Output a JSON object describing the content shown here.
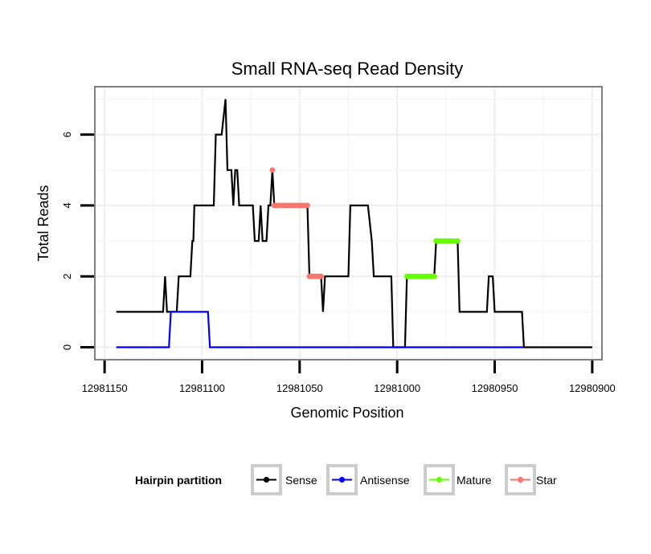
{
  "chart_data": {
    "type": "line",
    "title": "Small RNA-seq Read Density",
    "xlabel": "Genomic Position",
    "ylabel": "Total Reads",
    "xlim": [
      12981155,
      12980895
    ],
    "x_reversed": true,
    "ylim": [
      -0.35,
      7.35
    ],
    "xticks": [
      12981150,
      12981100,
      12981050,
      12981000,
      12980950,
      12980900
    ],
    "xtick_labels": [
      "12981150",
      "12981100",
      "12981050",
      "12981000",
      "12980950",
      "12980900"
    ],
    "yticks": [
      0,
      2,
      4,
      6
    ],
    "ytick_labels": [
      "0",
      "2",
      "4",
      "6"
    ],
    "grid": true,
    "legend": {
      "title": "Hairpin partition",
      "position": "bottom",
      "entries": [
        "Sense",
        "Antisense",
        "Mature",
        "Star"
      ]
    },
    "series": [
      {
        "name": "Sense",
        "color": "#000000",
        "style": "line",
        "points": [
          [
            12981144,
            1
          ],
          [
            12981120,
            1
          ],
          [
            12981119,
            2
          ],
          [
            12981118,
            1
          ],
          [
            12981113,
            1
          ],
          [
            12981112,
            2
          ],
          [
            12981106,
            2
          ],
          [
            12981105,
            3
          ],
          [
            12981104.5,
            3
          ],
          [
            12981104,
            4
          ],
          [
            12981094,
            4
          ],
          [
            12981093,
            6
          ],
          [
            12981090,
            6
          ],
          [
            12981088,
            7
          ],
          [
            12981087,
            5
          ],
          [
            12981085,
            5
          ],
          [
            12981084,
            4
          ],
          [
            12981083,
            5
          ],
          [
            12981082,
            5
          ],
          [
            12981081,
            4
          ],
          [
            12981074,
            4
          ],
          [
            12981073,
            3
          ],
          [
            12981071,
            3
          ],
          [
            12981070,
            4
          ],
          [
            12981069,
            3
          ],
          [
            12981067,
            3
          ],
          [
            12981066,
            4
          ],
          [
            12981065,
            4
          ],
          [
            12981064,
            5
          ],
          [
            12981063,
            4
          ],
          [
            12981046,
            4
          ],
          [
            12981045,
            2
          ],
          [
            12981039,
            2
          ],
          [
            12981038,
            1
          ],
          [
            12981037,
            2
          ],
          [
            12981025,
            2
          ],
          [
            12981024,
            4
          ],
          [
            12981015,
            4
          ],
          [
            12981013,
            3
          ],
          [
            12981012,
            2
          ],
          [
            12981003,
            2
          ],
          [
            12981002,
            0
          ],
          [
            12980996,
            0
          ],
          [
            12980995,
            2
          ],
          [
            12980981,
            2
          ],
          [
            12980980,
            3
          ],
          [
            12980969,
            3
          ],
          [
            12980968,
            1
          ],
          [
            12980954,
            1
          ],
          [
            12980953,
            2
          ],
          [
            12980951,
            2
          ],
          [
            12980950,
            1
          ],
          [
            12980936,
            1
          ],
          [
            12980935,
            0
          ],
          [
            12980900,
            0
          ]
        ]
      },
      {
        "name": "Antisense",
        "color": "#0000ff",
        "style": "line",
        "points": [
          [
            12981144,
            0
          ],
          [
            12981117,
            0
          ],
          [
            12981116,
            1
          ],
          [
            12981097,
            1
          ],
          [
            12981096,
            0
          ],
          [
            12980935,
            0
          ]
        ]
      },
      {
        "name": "Mature",
        "color": "#66ff00",
        "style": "points",
        "points": [
          [
            12980995,
            2
          ],
          [
            12980994,
            2
          ],
          [
            12980993,
            2
          ],
          [
            12980992,
            2
          ],
          [
            12980991,
            2
          ],
          [
            12980990,
            2
          ],
          [
            12980989,
            2
          ],
          [
            12980988,
            2
          ],
          [
            12980987,
            2
          ],
          [
            12980986,
            2
          ],
          [
            12980985,
            2
          ],
          [
            12980984,
            2
          ],
          [
            12980983,
            2
          ],
          [
            12980982,
            2
          ],
          [
            12980981,
            2
          ],
          [
            12980980,
            3
          ],
          [
            12980979,
            3
          ],
          [
            12980978,
            3
          ],
          [
            12980977,
            3
          ],
          [
            12980976,
            3
          ],
          [
            12980975,
            3
          ],
          [
            12980974,
            3
          ],
          [
            12980973,
            3
          ],
          [
            12980972,
            3
          ],
          [
            12980971,
            3
          ],
          [
            12980970,
            3
          ],
          [
            12980969,
            3
          ]
        ]
      },
      {
        "name": "Star",
        "color": "#f8766d",
        "style": "points",
        "points": [
          [
            12981064,
            5
          ],
          [
            12981063,
            4
          ],
          [
            12981062,
            4
          ],
          [
            12981061,
            4
          ],
          [
            12981060,
            4
          ],
          [
            12981059,
            4
          ],
          [
            12981058,
            4
          ],
          [
            12981057,
            4
          ],
          [
            12981056,
            4
          ],
          [
            12981055,
            4
          ],
          [
            12981054,
            4
          ],
          [
            12981053,
            4
          ],
          [
            12981052,
            4
          ],
          [
            12981051,
            4
          ],
          [
            12981050,
            4
          ],
          [
            12981049,
            4
          ],
          [
            12981048,
            4
          ],
          [
            12981047,
            4
          ],
          [
            12981046,
            4
          ],
          [
            12981045,
            2
          ],
          [
            12981044,
            2
          ],
          [
            12981043,
            2
          ],
          [
            12981042,
            2
          ],
          [
            12981041,
            2
          ],
          [
            12981040,
            2
          ],
          [
            12981039,
            2
          ]
        ]
      }
    ]
  }
}
